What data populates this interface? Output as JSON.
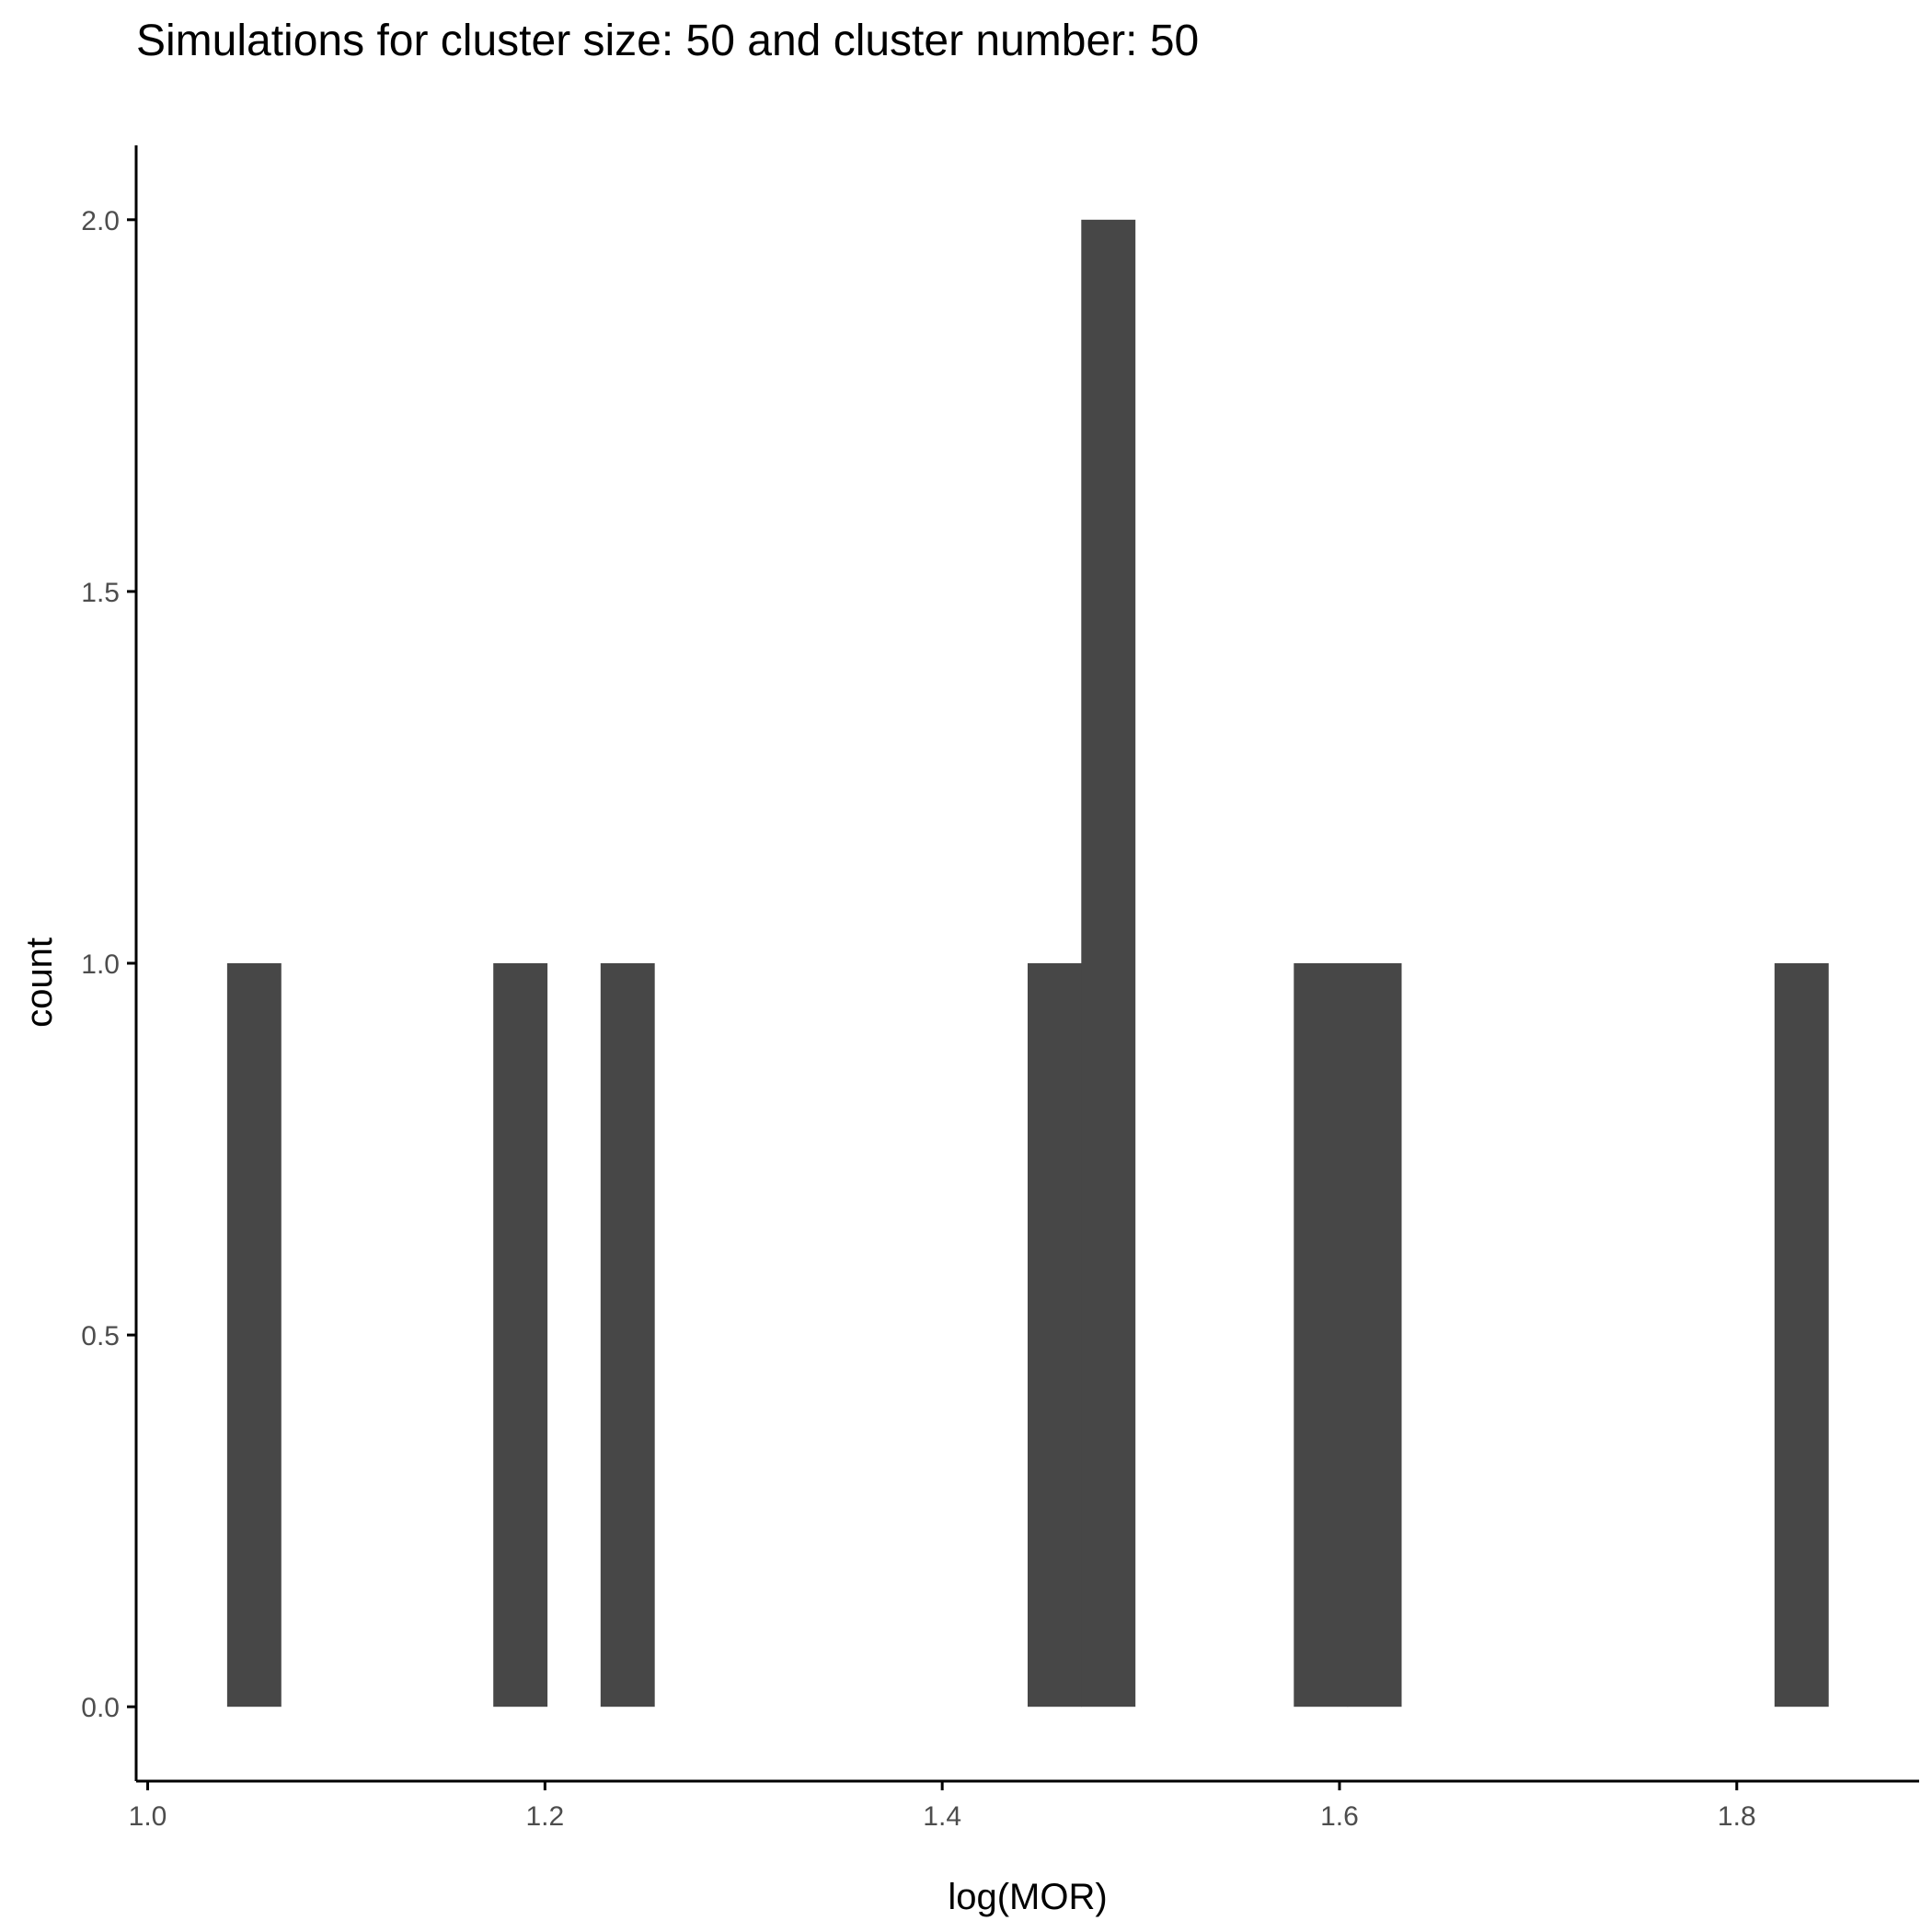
{
  "chart_data": {
    "type": "bar",
    "title": "Simulations for cluster size: 50 and cluster number: 50",
    "xlabel": "log(MOR)",
    "ylabel": "count",
    "bin_width": 0.0268,
    "bins": [
      {
        "x_start": 1.04,
        "x_end": 1.067,
        "count": 1
      },
      {
        "x_start": 1.174,
        "x_end": 1.201,
        "count": 1
      },
      {
        "x_start": 1.228,
        "x_end": 1.255,
        "count": 1
      },
      {
        "x_start": 1.443,
        "x_end": 1.47,
        "count": 1
      },
      {
        "x_start": 1.47,
        "x_end": 1.497,
        "count": 2
      },
      {
        "x_start": 1.577,
        "x_end": 1.604,
        "count": 1
      },
      {
        "x_start": 1.604,
        "x_end": 1.631,
        "count": 1
      },
      {
        "x_start": 1.819,
        "x_end": 1.846,
        "count": 1
      }
    ],
    "x_ticks": [
      {
        "value": 1.0,
        "label": "1.0"
      },
      {
        "value": 1.2,
        "label": "1.2"
      },
      {
        "value": 1.4,
        "label": "1.4"
      },
      {
        "value": 1.6,
        "label": "1.6"
      },
      {
        "value": 1.8,
        "label": "1.8"
      }
    ],
    "y_ticks": [
      {
        "value": 0.0,
        "label": "0.0"
      },
      {
        "value": 0.5,
        "label": "0.5"
      },
      {
        "value": 1.0,
        "label": "1.0"
      },
      {
        "value": 1.5,
        "label": "1.5"
      },
      {
        "value": 2.0,
        "label": "2.0"
      }
    ],
    "xlim": [
      0.9942,
      1.8918
    ],
    "ylim": [
      -0.1,
      2.1
    ],
    "grid": false,
    "bar_color": "#474747",
    "axis_color": "#000000",
    "tick_label_color": "#4d4d4d"
  }
}
